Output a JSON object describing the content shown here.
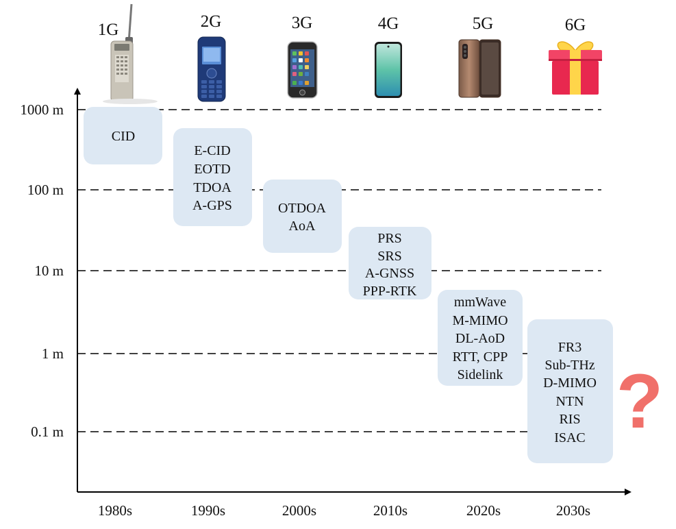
{
  "generations": [
    {
      "id": "1g",
      "label": "1G",
      "device": "brick-phone"
    },
    {
      "id": "2g",
      "label": "2G",
      "device": "feature-phone"
    },
    {
      "id": "3g",
      "label": "3G",
      "device": "early-smartphone"
    },
    {
      "id": "4g",
      "label": "4G",
      "device": "smartphone"
    },
    {
      "id": "5g",
      "label": "5G",
      "device": "foldable-phone"
    },
    {
      "id": "6g",
      "label": "6G",
      "device": "gift-box"
    }
  ],
  "eras": [
    "1980s",
    "1990s",
    "2000s",
    "2010s",
    "2020s",
    "2030s"
  ],
  "accuracy_levels": [
    "1000 m",
    "100 m",
    "10 m",
    "1 m",
    "0.1 m"
  ],
  "technologies": [
    {
      "generation": "1G",
      "lines": [
        "CID"
      ]
    },
    {
      "generation": "2G",
      "lines": [
        "E-CID",
        "EOTD",
        "TDOA",
        "A-GPS"
      ]
    },
    {
      "generation": "3G",
      "lines": [
        "OTDOA",
        "AoA"
      ]
    },
    {
      "generation": "4G",
      "lines": [
        "PRS",
        "SRS",
        "A-GNSS",
        "PPP-RTK"
      ]
    },
    {
      "generation": "5G",
      "lines": [
        "mmWave",
        "M-MIMO",
        "DL-AoD",
        "RTT, CPP",
        "Sidelink"
      ]
    },
    {
      "generation": "6G",
      "lines": [
        "FR3",
        "Sub-THz",
        "D-MIMO",
        "NTN",
        "RIS",
        "ISAC"
      ]
    }
  ],
  "unknown_marker": "?",
  "colors": {
    "box_fill": "#dde8f3",
    "axis": "#000000",
    "gridline": "#000000",
    "question_mark": "#f0706a"
  }
}
